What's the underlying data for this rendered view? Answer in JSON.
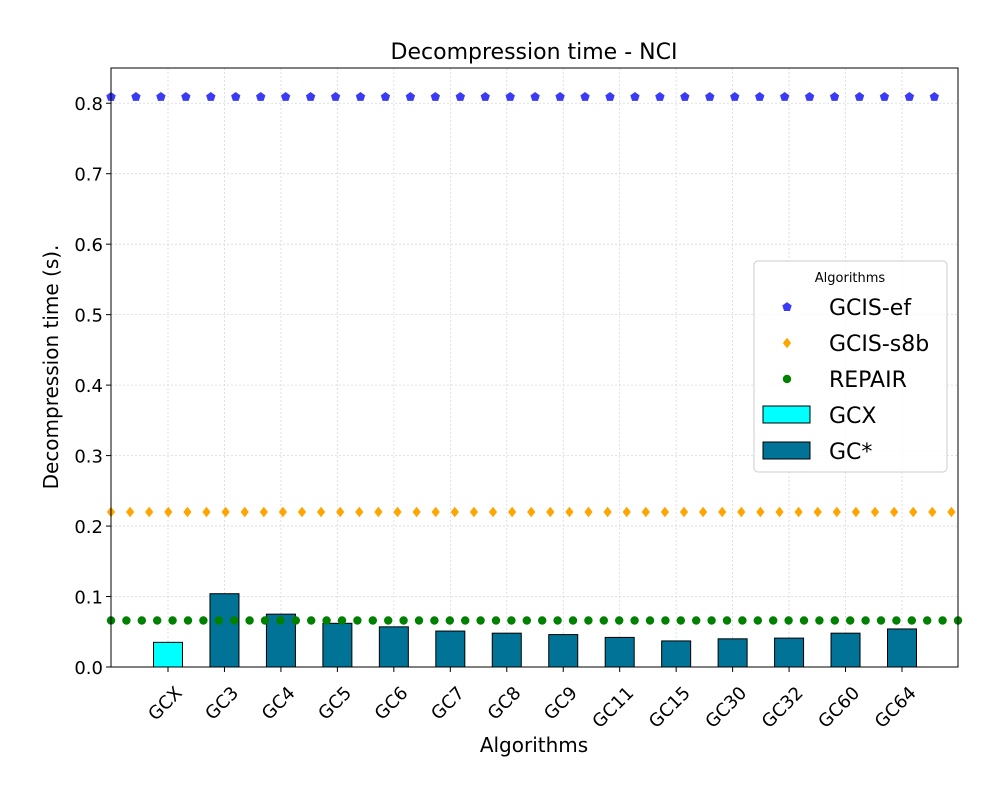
{
  "chart_data": {
    "type": "bar",
    "title": "Decompression time -  NCI",
    "xlabel": "Algorithms",
    "ylabel": "Decompression time (s).",
    "ylim": [
      0,
      0.85
    ],
    "yticks": [
      "0.0",
      "0.1",
      "0.2",
      "0.3",
      "0.4",
      "0.5",
      "0.6",
      "0.7",
      "0.8"
    ],
    "grid": true,
    "categories": [
      "GCX",
      "GC3",
      "GC4",
      "GC5",
      "GC6",
      "GC7",
      "GC8",
      "GC9",
      "GC11",
      "GC15",
      "GC30",
      "GC32",
      "GC60",
      "GC64"
    ],
    "bars": [
      {
        "category": "GCX",
        "value": 0.035,
        "group": "GCX"
      },
      {
        "category": "GC3",
        "value": 0.104,
        "group": "GC*"
      },
      {
        "category": "GC4",
        "value": 0.075,
        "group": "GC*"
      },
      {
        "category": "GC5",
        "value": 0.062,
        "group": "GC*"
      },
      {
        "category": "GC6",
        "value": 0.057,
        "group": "GC*"
      },
      {
        "category": "GC7",
        "value": 0.051,
        "group": "GC*"
      },
      {
        "category": "GC8",
        "value": 0.048,
        "group": "GC*"
      },
      {
        "category": "GC9",
        "value": 0.046,
        "group": "GC*"
      },
      {
        "category": "GC11",
        "value": 0.042,
        "group": "GC*"
      },
      {
        "category": "GC15",
        "value": 0.037,
        "group": "GC*"
      },
      {
        "category": "GC30",
        "value": 0.04,
        "group": "GC*"
      },
      {
        "category": "GC32",
        "value": 0.041,
        "group": "GC*"
      },
      {
        "category": "GC60",
        "value": 0.048,
        "group": "GC*"
      },
      {
        "category": "GC64",
        "value": 0.054,
        "group": "GC*"
      }
    ],
    "reference_lines": [
      {
        "name": "GCIS-ef",
        "value": 0.809,
        "color": "#3b3bf5",
        "marker": "pentagon"
      },
      {
        "name": "GCIS-s8b",
        "value": 0.22,
        "color": "#ffa500",
        "marker": "diamond"
      },
      {
        "name": "REPAIR",
        "value": 0.066,
        "color": "#008000",
        "marker": "circle"
      }
    ],
    "bar_groups": [
      {
        "name": "GCX",
        "color": "#00ffff"
      },
      {
        "name": "GC*",
        "color": "#007396"
      }
    ],
    "legend": {
      "title": "Algorithms",
      "placement": "center-right",
      "entries": [
        "GCIS-ef",
        "GCIS-s8b",
        "REPAIR",
        "GCX",
        "GC*"
      ]
    }
  }
}
